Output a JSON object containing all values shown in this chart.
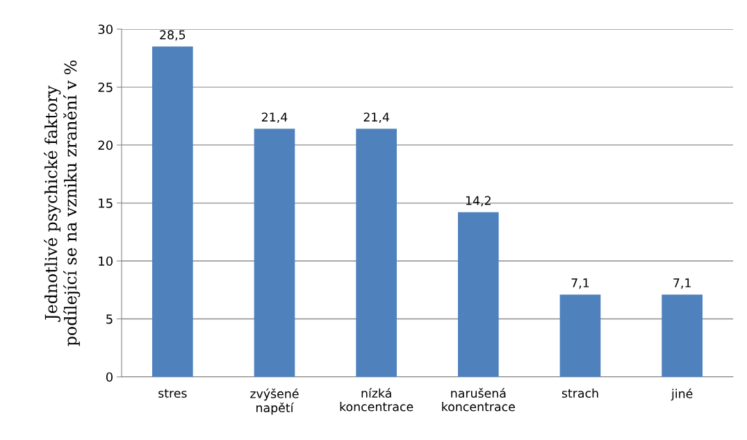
{
  "chart_data": {
    "type": "bar",
    "ylabel": "Jednotlivé psychické faktory\npodílející se na vzniku zranění v %",
    "categories": [
      "stres",
      "zvýšené\nnapětí",
      "nízká\nkoncentrace",
      "narušená\nkoncentrace",
      "strach",
      "jiné"
    ],
    "values": [
      28.5,
      21.4,
      21.4,
      14.2,
      7.1,
      7.1
    ],
    "value_labels": [
      "28,5",
      "21,4",
      "21,4",
      "14,2",
      "7,1",
      "7,1"
    ],
    "color": "#4f81bd",
    "ylim": [
      0,
      30
    ],
    "yticks": [
      0,
      5,
      10,
      15,
      20,
      25,
      30
    ],
    "grid": "y"
  }
}
